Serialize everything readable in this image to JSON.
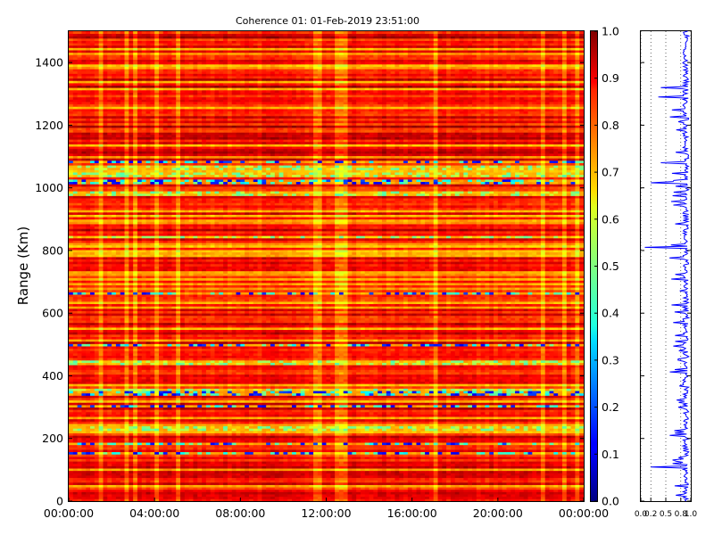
{
  "chart_data": [
    {
      "type": "heatmap",
      "title": "Coherence 01: 01-Feb-2019 23:51:00",
      "xlabel": "",
      "ylabel": "Range (Km)",
      "x_ticks": [
        "00:00:00",
        "04:00:00",
        "08:00:00",
        "12:00:00",
        "16:00:00",
        "20:00:00",
        "00:00:00"
      ],
      "y_ticks": [
        0,
        200,
        400,
        600,
        800,
        1000,
        1200,
        1400
      ],
      "ylim": [
        0,
        1500
      ],
      "xlim_hours": [
        0,
        24
      ],
      "range_step_km": 7.5,
      "time_columns": 120,
      "colormap": "jet",
      "color_range": [
        0,
        1
      ],
      "colorbar_ticks": [
        "0.0",
        "0.1",
        "0.2",
        "0.3",
        "0.4",
        "0.5",
        "0.6",
        "0.7",
        "0.8",
        "0.9",
        "1.0"
      ],
      "low_coherence_bands_km": [
        150,
        180,
        300,
        340,
        495,
        660,
        1015,
        1080
      ],
      "medium_coherence_bands_km": [
        230,
        350,
        440,
        840,
        980,
        1040,
        1060
      ]
    },
    {
      "type": "line",
      "title": "",
      "xlabel": "",
      "ylabel": "",
      "x_ticks": [
        "0.0",
        "0.2",
        "0.5",
        "0.8",
        "1.0"
      ],
      "xlim": [
        0,
        1
      ],
      "ylim": [
        0,
        1500
      ],
      "grid": true,
      "line_color": "#0000ff",
      "dip_points": [
        {
          "range_km": 20,
          "value": 0.7
        },
        {
          "range_km": 110,
          "value": 0.2
        },
        {
          "range_km": 300,
          "value": 0.75
        },
        {
          "range_km": 340,
          "value": 0.85
        },
        {
          "range_km": 495,
          "value": 0.65
        },
        {
          "range_km": 670,
          "value": 0.78
        },
        {
          "range_km": 720,
          "value": 0.85
        },
        {
          "range_km": 810,
          "value": 0.08
        },
        {
          "range_km": 1015,
          "value": 0.2
        },
        {
          "range_km": 1080,
          "value": 0.4
        },
        {
          "range_km": 1210,
          "value": 0.75
        },
        {
          "range_km": 1290,
          "value": 0.35
        },
        {
          "range_km": 1320,
          "value": 0.4
        }
      ],
      "baseline_value": 0.9
    }
  ]
}
